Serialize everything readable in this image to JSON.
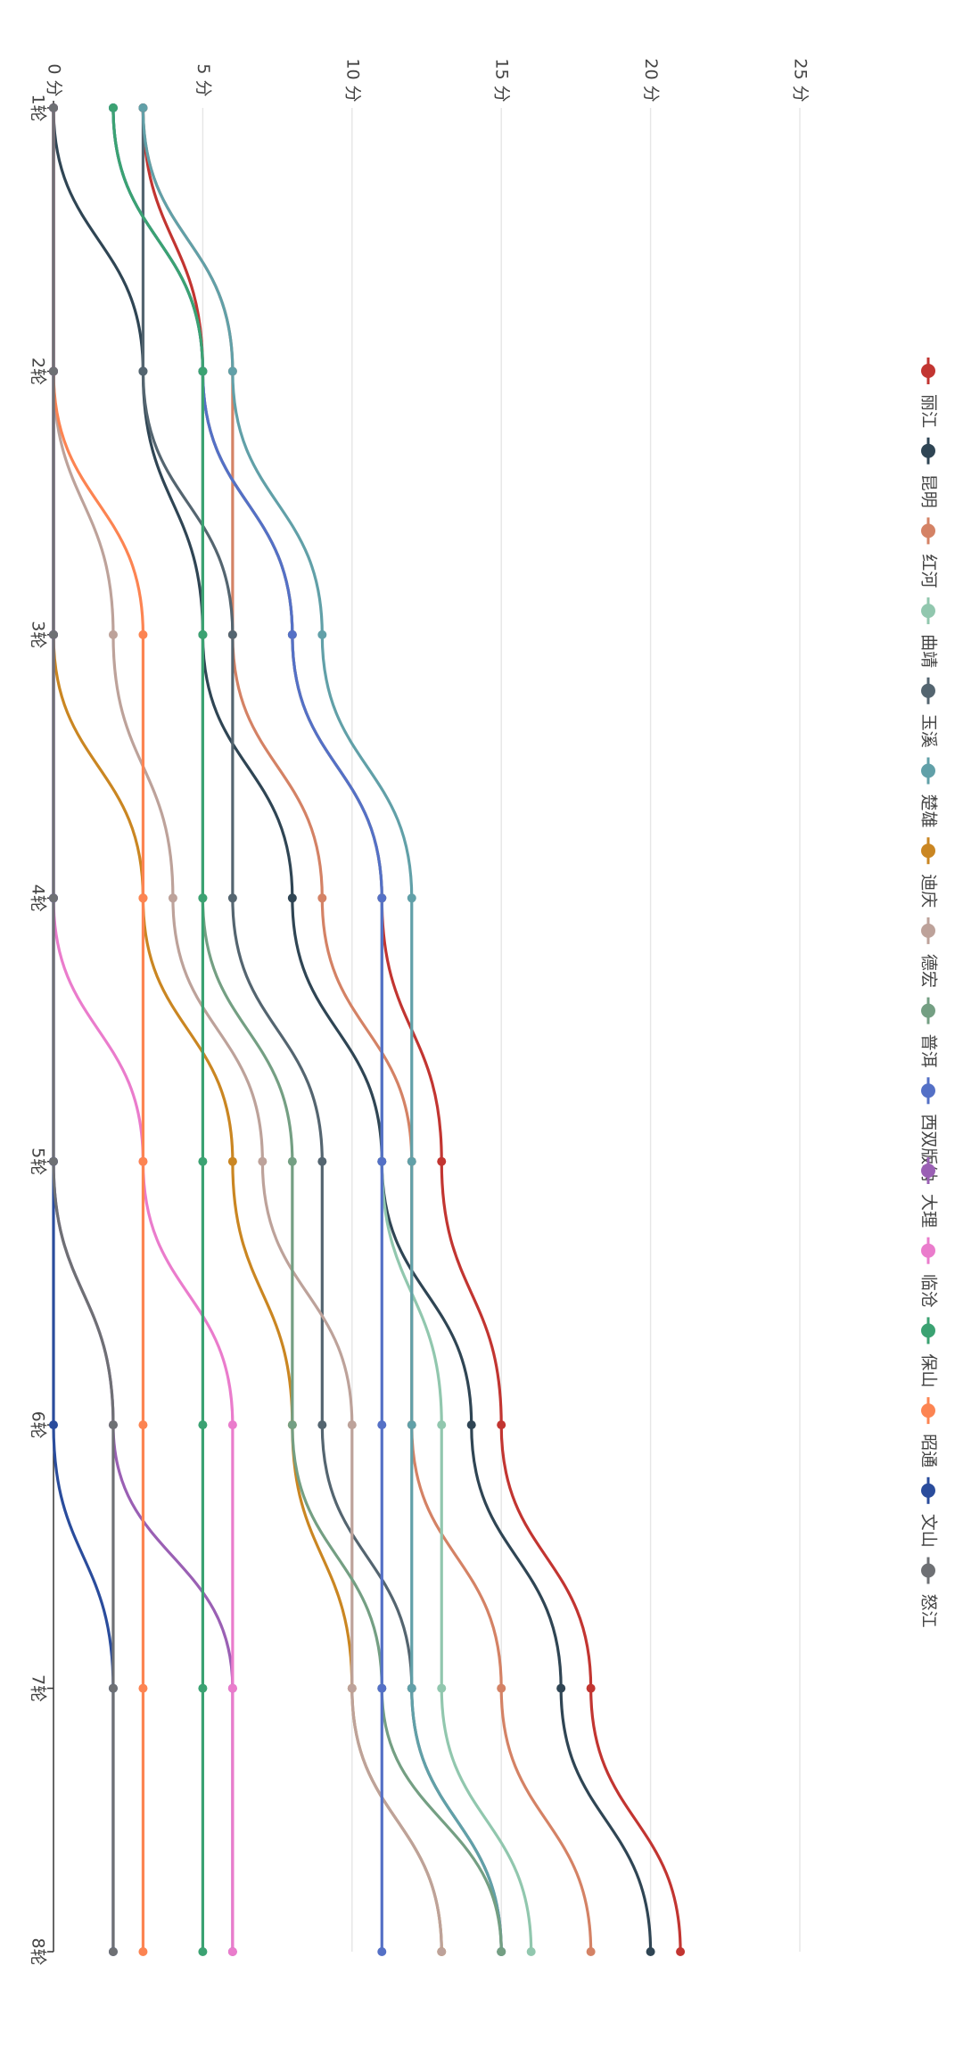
{
  "chart_data": {
    "type": "line",
    "smooth": true,
    "grid": true,
    "legend": "right",
    "categories": [
      "1轮",
      "2轮",
      "3轮",
      "4轮",
      "5轮",
      "6轮",
      "7轮",
      "8轮"
    ],
    "ylim": [
      0,
      25
    ],
    "yticks": [
      {
        "value": 0,
        "label": "0 分"
      },
      {
        "value": 5,
        "label": "5 分"
      },
      {
        "value": 10,
        "label": "10 分"
      },
      {
        "value": 15,
        "label": "15 分"
      },
      {
        "value": 20,
        "label": "20 分"
      },
      {
        "value": 25,
        "label": "25 分"
      }
    ],
    "series": [
      {
        "name": "丽江",
        "color": "#c23531",
        "values": [
          3,
          5,
          8,
          11,
          13,
          15,
          18,
          21
        ]
      },
      {
        "name": "昆明",
        "color": "#2f4554",
        "values": [
          0,
          3,
          5,
          8,
          11,
          14,
          17,
          20
        ]
      },
      {
        "name": "红河",
        "color": "#d48265",
        "values": [
          3,
          6,
          6,
          9,
          12,
          12,
          15,
          18
        ]
      },
      {
        "name": "曲靖",
        "color": "#91c7ae",
        "values": [
          2,
          5,
          8,
          11,
          11,
          13,
          13,
          16
        ]
      },
      {
        "name": "玉溪",
        "color": "#546570",
        "values": [
          3,
          3,
          6,
          6,
          9,
          9,
          12,
          15
        ]
      },
      {
        "name": "楚雄",
        "color": "#61a0a8",
        "values": [
          3,
          6,
          9,
          12,
          12,
          12,
          12,
          15
        ]
      },
      {
        "name": "迪庆",
        "color": "#ca8622",
        "values": [
          0,
          0,
          0,
          3,
          6,
          8,
          10,
          13
        ]
      },
      {
        "name": "德宏",
        "color": "#bda29a",
        "values": [
          0,
          0,
          2,
          4,
          7,
          10,
          10,
          13
        ]
      },
      {
        "name": "普洱",
        "color": "#749f83",
        "values": [
          2,
          5,
          5,
          5,
          8,
          8,
          11,
          15
        ]
      },
      {
        "name": "西双版纳",
        "color": "#5470c6",
        "values": [
          2,
          5,
          8,
          11,
          11,
          11,
          11,
          11
        ]
      },
      {
        "name": "大理",
        "color": "#9a60b4",
        "values": [
          0,
          0,
          0,
          0,
          0,
          2,
          6,
          6
        ]
      },
      {
        "name": "临沧",
        "color": "#ea7ccc",
        "values": [
          0,
          0,
          0,
          0,
          3,
          6,
          6,
          6
        ]
      },
      {
        "name": "保山",
        "color": "#3ba272",
        "values": [
          2,
          5,
          5,
          5,
          5,
          5,
          5,
          5
        ]
      },
      {
        "name": "昭通",
        "color": "#fc8452",
        "values": [
          0,
          0,
          3,
          3,
          3,
          3,
          3,
          3
        ]
      },
      {
        "name": "文山",
        "color": "#2a4c9c",
        "values": [
          0,
          0,
          0,
          0,
          0,
          0,
          2,
          2
        ]
      },
      {
        "name": "怒江",
        "color": "#6e7074",
        "values": [
          0,
          0,
          0,
          0,
          0,
          2,
          2,
          2
        ]
      }
    ]
  }
}
